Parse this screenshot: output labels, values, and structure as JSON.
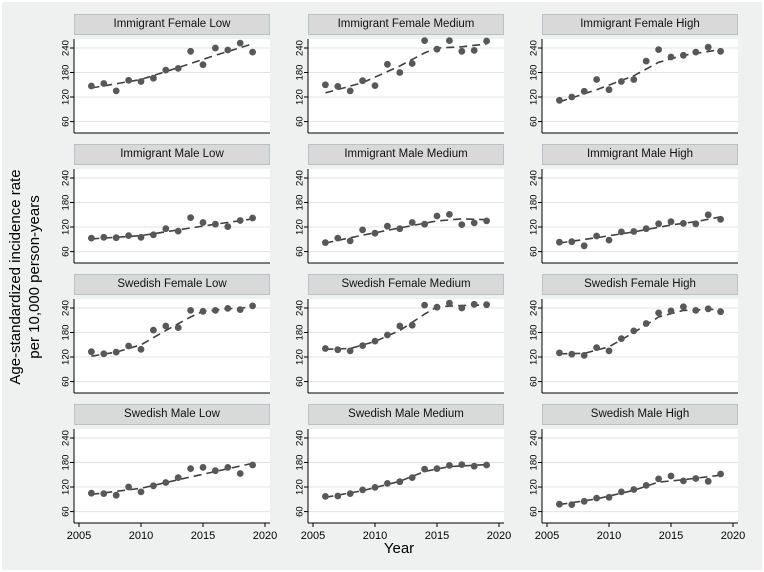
{
  "figure": {
    "background": "#eff1f1",
    "plot_background": "#ffffff",
    "strip_background": "#d9d9d9",
    "gridline_color": "#e3e3e3",
    "dot_color": "#585858",
    "trend_color": "#404040",
    "axis_color": "#000000"
  },
  "ylabel_line1": "Age-standardized incidence rate",
  "ylabel_line2": "per 10,000 person-years",
  "xlabel": "Year",
  "chart_data": {
    "type": "scatter",
    "title": "",
    "xlabel": "Year",
    "ylabel": "Age-standardized incidence rate per 10,000 person-years",
    "x": [
      2006,
      2007,
      2008,
      2009,
      2010,
      2011,
      2012,
      2013,
      2014,
      2015,
      2016,
      2017,
      2018,
      2019
    ],
    "xticks": [
      2005,
      2010,
      2015,
      2020
    ],
    "yticks": [
      60,
      120,
      180,
      240
    ],
    "xlim": [
      2004.6,
      2020.4
    ],
    "ylim": [
      32,
      262
    ],
    "grid": "horizontal",
    "legend": "none",
    "layout": "4 rows x 3 columns, x tick labels on bottom row only",
    "panels": [
      {
        "title": "Immigrant Female Low",
        "values": [
          147,
          153,
          135,
          161,
          158,
          166,
          186,
          190,
          232,
          199,
          240,
          235,
          252,
          230
        ],
        "trend": [
          [
            2006,
            142
          ],
          [
            2010,
            163
          ],
          [
            2013,
            192
          ],
          [
            2016,
            222
          ],
          [
            2019,
            250
          ]
        ]
      },
      {
        "title": "Immigrant Female Medium",
        "values": [
          150,
          146,
          135,
          160,
          148,
          200,
          180,
          202,
          258,
          237,
          258,
          232,
          234,
          257
        ],
        "trend": [
          [
            2006,
            130
          ],
          [
            2009,
            155
          ],
          [
            2012,
            196
          ],
          [
            2014,
            228
          ],
          [
            2015,
            240
          ],
          [
            2017,
            243
          ],
          [
            2019,
            250
          ]
        ]
      },
      {
        "title": "Immigrant Female High",
        "values": [
          112,
          120,
          134,
          163,
          138,
          158,
          163,
          208,
          236,
          218,
          222,
          230,
          242,
          232
        ],
        "trend": [
          [
            2006,
            108
          ],
          [
            2009,
            138
          ],
          [
            2012,
            172
          ],
          [
            2014,
            205
          ],
          [
            2016,
            222
          ],
          [
            2019,
            236
          ]
        ]
      },
      {
        "title": "Immigrant Male Low",
        "values": [
          93,
          95,
          94,
          99,
          95,
          101,
          116,
          110,
          143,
          131,
          127,
          121,
          136,
          142
        ],
        "trend": [
          [
            2006,
            91
          ],
          [
            2010,
            99
          ],
          [
            2013,
            113
          ],
          [
            2016,
            127
          ],
          [
            2019,
            140
          ]
        ]
      },
      {
        "title": "Immigrant Male Medium",
        "values": [
          82,
          93,
          86,
          113,
          105,
          122,
          116,
          131,
          127,
          147,
          151,
          126,
          130,
          135
        ],
        "trend": [
          [
            2006,
            81
          ],
          [
            2009,
            100
          ],
          [
            2012,
            118
          ],
          [
            2015,
            135
          ],
          [
            2017,
            140
          ],
          [
            2019,
            138
          ]
        ]
      },
      {
        "title": "Immigrant Male High",
        "values": [
          83,
          84,
          74,
          98,
          88,
          108,
          109,
          116,
          128,
          133,
          129,
          128,
          150,
          139
        ],
        "trend": [
          [
            2006,
            81
          ],
          [
            2009,
            94
          ],
          [
            2012,
            108
          ],
          [
            2015,
            125
          ],
          [
            2017,
            133
          ],
          [
            2019,
            145
          ]
        ]
      },
      {
        "title": "Swedish Female Low",
        "values": [
          133,
          128,
          132,
          147,
          139,
          186,
          196,
          192,
          234,
          232,
          234,
          239,
          236,
          245
        ],
        "trend": [
          [
            2006,
            122
          ],
          [
            2008,
            132
          ],
          [
            2010,
            150
          ],
          [
            2012,
            185
          ],
          [
            2014,
            218
          ],
          [
            2015,
            232
          ],
          [
            2017,
            238
          ],
          [
            2019,
            242
          ]
        ]
      },
      {
        "title": "Swedish Female Medium",
        "values": [
          141,
          138,
          135,
          148,
          159,
          174,
          196,
          198,
          247,
          242,
          252,
          240,
          249,
          248
        ],
        "trend": [
          [
            2006,
            139
          ],
          [
            2008,
            141
          ],
          [
            2010,
            158
          ],
          [
            2012,
            185
          ],
          [
            2014,
            225
          ],
          [
            2015,
            243
          ],
          [
            2017,
            246
          ],
          [
            2019,
            247
          ]
        ]
      },
      {
        "title": "Swedish Female High",
        "values": [
          130,
          127,
          124,
          143,
          135,
          165,
          184,
          202,
          228,
          233,
          243,
          234,
          238,
          231
        ],
        "trend": [
          [
            2006,
            128
          ],
          [
            2008,
            129
          ],
          [
            2010,
            145
          ],
          [
            2012,
            180
          ],
          [
            2014,
            218
          ],
          [
            2016,
            234
          ],
          [
            2019,
            237
          ]
        ]
      },
      {
        "title": "Swedish Male Low",
        "values": [
          105,
          104,
          100,
          120,
          108,
          123,
          131,
          143,
          165,
          168,
          160,
          168,
          153,
          174
        ],
        "trend": [
          [
            2006,
            102
          ],
          [
            2010,
            117
          ],
          [
            2013,
            138
          ],
          [
            2016,
            158
          ],
          [
            2019,
            178
          ]
        ]
      },
      {
        "title": "Swedish Male Medium",
        "values": [
          97,
          98,
          104,
          113,
          119,
          129,
          133,
          143,
          164,
          165,
          173,
          175,
          171,
          174
        ],
        "trend": [
          [
            2006,
            95
          ],
          [
            2009,
            111
          ],
          [
            2012,
            134
          ],
          [
            2014,
            158
          ],
          [
            2016,
            170
          ],
          [
            2019,
            175
          ]
        ]
      },
      {
        "title": "Swedish Male High",
        "values": [
          78,
          77,
          85,
          93,
          95,
          108,
          114,
          124,
          140,
          147,
          135,
          141,
          134,
          152
        ],
        "trend": [
          [
            2006,
            77
          ],
          [
            2009,
            91
          ],
          [
            2012,
            112
          ],
          [
            2014,
            132
          ],
          [
            2016,
            138
          ],
          [
            2019,
            149
          ]
        ]
      }
    ]
  }
}
